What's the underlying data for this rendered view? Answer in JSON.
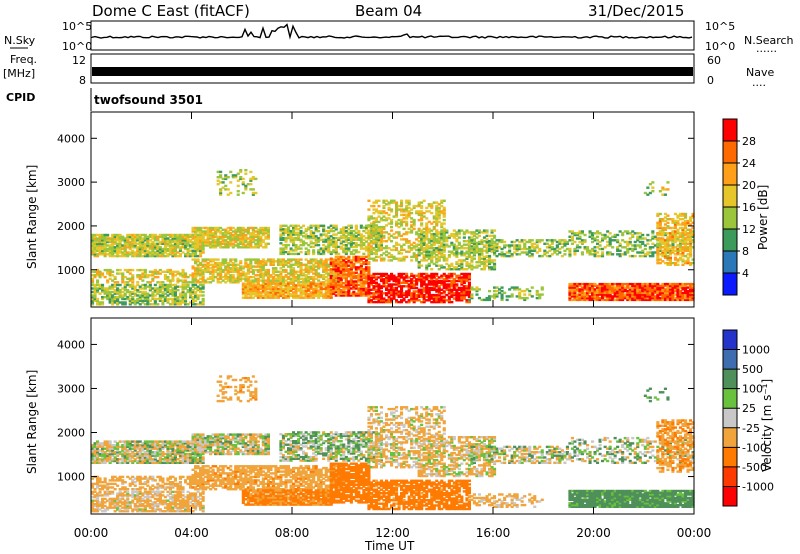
{
  "header": {
    "radar": "Dome C East (fitACF)",
    "beam": "Beam 04",
    "date": "31/Dec/2015"
  },
  "strips": {
    "nsky_label": "N.Sky",
    "nsky_ticks": [
      "10^5",
      "10^0"
    ],
    "nsearch_label": "N.Search",
    "nsearch_ticks": [
      "10^5",
      "10^0"
    ],
    "freq_label_top": "Freq.",
    "freq_label_unit": "[MHz]",
    "freq_ticks": [
      "12",
      "8"
    ],
    "nave_label": "Nave",
    "nave_ticks": [
      "60",
      "0"
    ],
    "cpid_label": "CPID",
    "cpid_value": "twofsound 3501",
    "dots": "......",
    "dots_short": "...."
  },
  "chart_data": [
    {
      "type": "heatmap",
      "title": "",
      "ylabel": "Slant Range [km]",
      "ylim": [
        150,
        4600
      ],
      "yticks": [
        1000,
        2000,
        3000,
        4000
      ],
      "xlim": [
        0,
        24
      ],
      "xticks": [
        "00:00",
        "04:00",
        "08:00",
        "12:00",
        "16:00",
        "20:00",
        "00:00"
      ],
      "colorbar_label": "Power [dB]",
      "colorbar_ticks": [
        "28",
        "24",
        "20",
        "16",
        "12",
        "8",
        "4"
      ],
      "colorbar_colors": [
        "#ff0000",
        "#ff6a00",
        "#ff9f1a",
        "#e6c62a",
        "#9bc53b",
        "#3c9a5b",
        "#2b78b8",
        "#0b1aff"
      ]
    },
    {
      "type": "heatmap",
      "title": "",
      "ylabel": "Slant Range [km]",
      "ylim": [
        150,
        4600
      ],
      "yticks": [
        1000,
        2000,
        3000,
        4000
      ],
      "xlim": [
        0,
        24
      ],
      "xticks": [
        "00:00",
        "04:00",
        "08:00",
        "12:00",
        "16:00",
        "20:00",
        "00:00"
      ],
      "xlabel": "Time UT",
      "colorbar_label": "Velocity [m s⁻¹]",
      "colorbar_ticks": [
        "1000",
        "500",
        "100",
        "25",
        "-25",
        "-100",
        "-500",
        "-1000"
      ],
      "colorbar_colors": [
        "#2433c9",
        "#3f6eb0",
        "#4f8f5a",
        "#68c23c",
        "#c8c8c8",
        "#f0a43b",
        "#ff7a00",
        "#ff3a00",
        "#ff0000"
      ]
    }
  ]
}
